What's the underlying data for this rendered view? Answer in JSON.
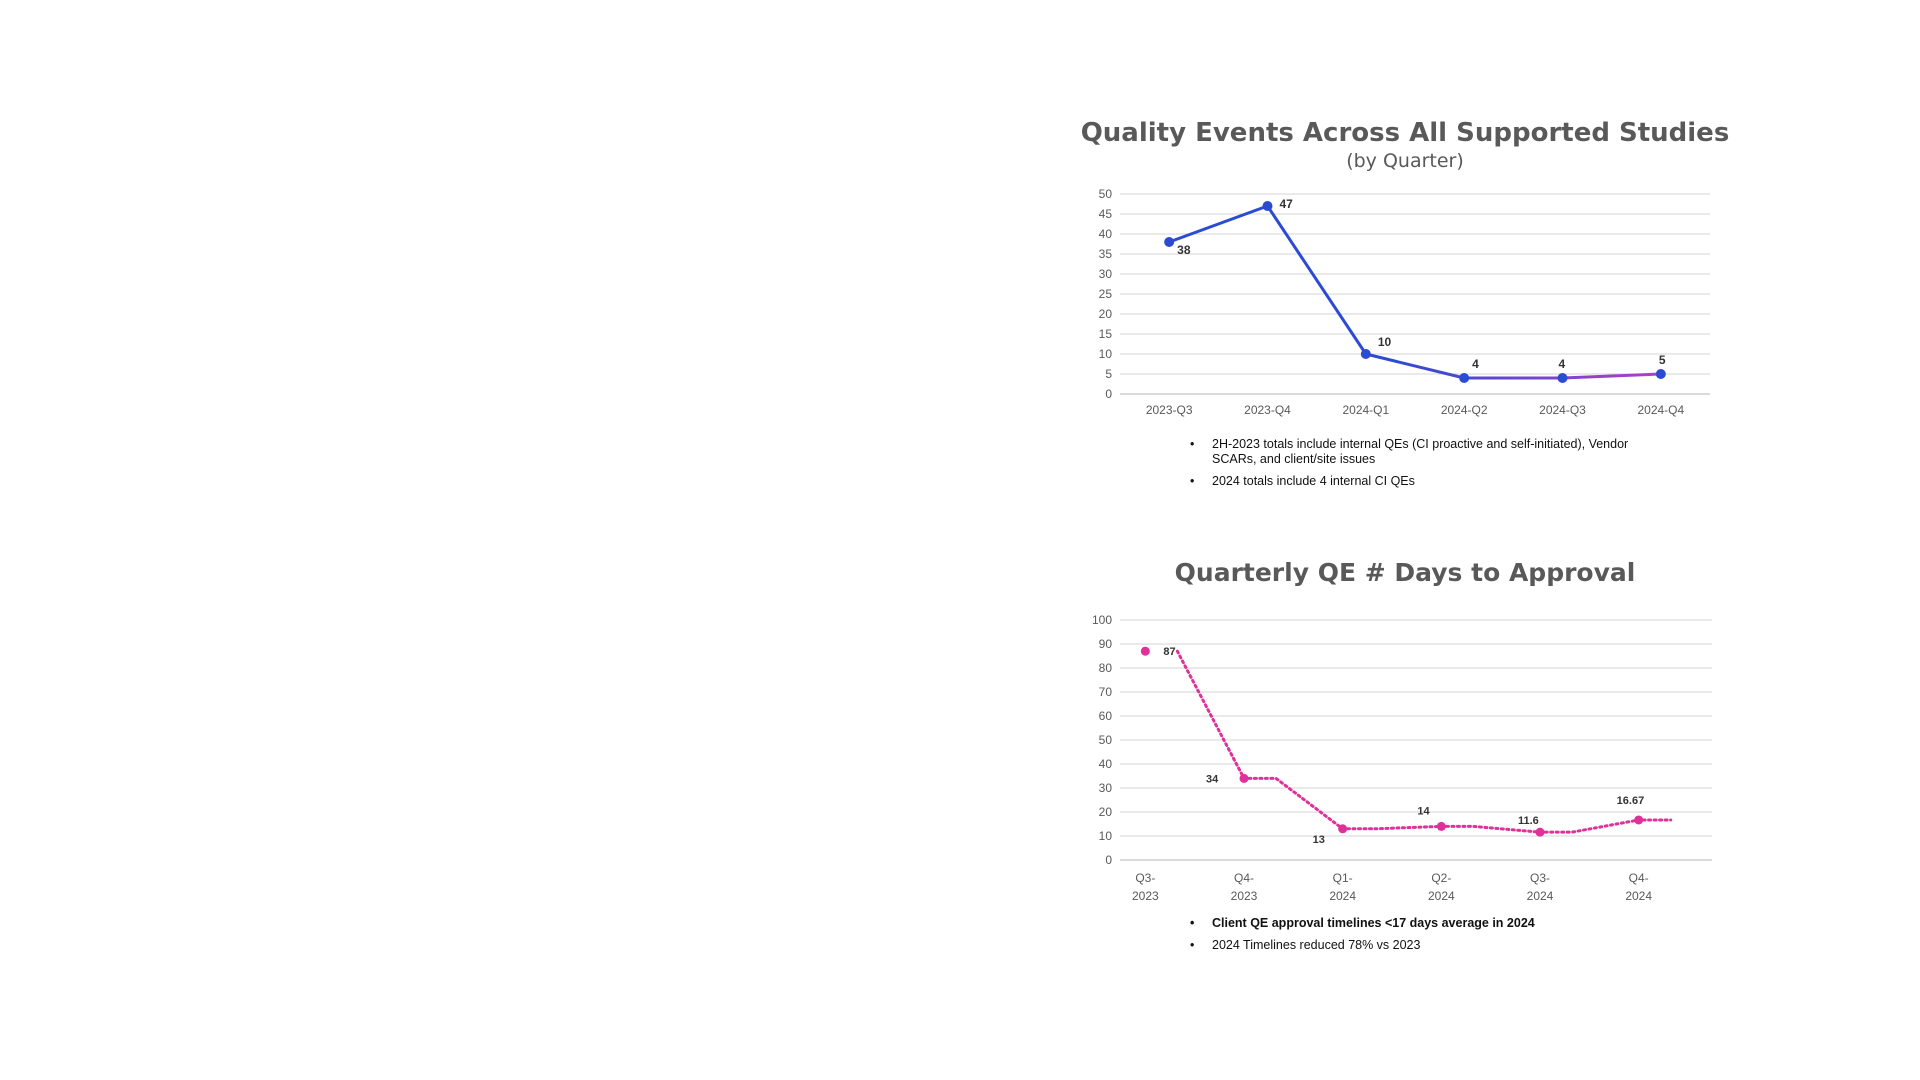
{
  "chart_data": [
    {
      "type": "line",
      "title": "Quality Events Across All Supported Studies",
      "subtitle": "(by Quarter)",
      "categories": [
        "2023-Q3",
        "2023-Q4",
        "2024-Q1",
        "2024-Q2",
        "2024-Q3",
        "2024-Q4"
      ],
      "series": [
        {
          "values": [
            38,
            47,
            10,
            4,
            4,
            5
          ]
        }
      ],
      "data_labels": [
        "38",
        "47",
        "10",
        "4",
        "4",
        "5"
      ],
      "ylim": [
        0,
        50
      ],
      "yticks": [
        0,
        5,
        10,
        15,
        20,
        25,
        30,
        35,
        40,
        45,
        50
      ],
      "grid": true,
      "colors": {
        "line_start": "#2b4bd3",
        "line_end": "#b23fc4",
        "marker": "#2b4bd3"
      },
      "notes": [
        {
          "text": "2H-2023 totals include internal QEs (CI proactive and self-initiated), Vendor SCARs, and client/site issues",
          "bold": false
        },
        {
          "text": "2024 totals include 4 internal CI QEs",
          "bold": false
        }
      ]
    },
    {
      "type": "line",
      "title": "Quarterly QE # Days to Approval",
      "categories": [
        [
          "Q3-",
          "2023"
        ],
        [
          "Q4-",
          "2023"
        ],
        [
          "Q1-",
          "2024"
        ],
        [
          "Q2-",
          "2024"
        ],
        [
          "Q3-",
          "2024"
        ],
        [
          "Q4-",
          "2024"
        ]
      ],
      "series": [
        {
          "values": [
            87,
            34,
            13,
            14,
            11.6,
            16.67
          ]
        }
      ],
      "data_labels": [
        "87",
        "34",
        "13",
        "14",
        "11.6",
        "16.67"
      ],
      "ylim": [
        0,
        100
      ],
      "yticks": [
        0,
        10,
        20,
        30,
        40,
        50,
        60,
        70,
        80,
        90,
        100
      ],
      "grid": true,
      "line_style": "dotted",
      "colors": {
        "line": "#e0309a",
        "marker": "#e0309a"
      },
      "notes": [
        {
          "text": "Client QE approval timelines <17 days average in 2024",
          "bold": true
        },
        {
          "text": "2024 Timelines reduced 78% vs 2023",
          "bold": false
        }
      ]
    }
  ]
}
